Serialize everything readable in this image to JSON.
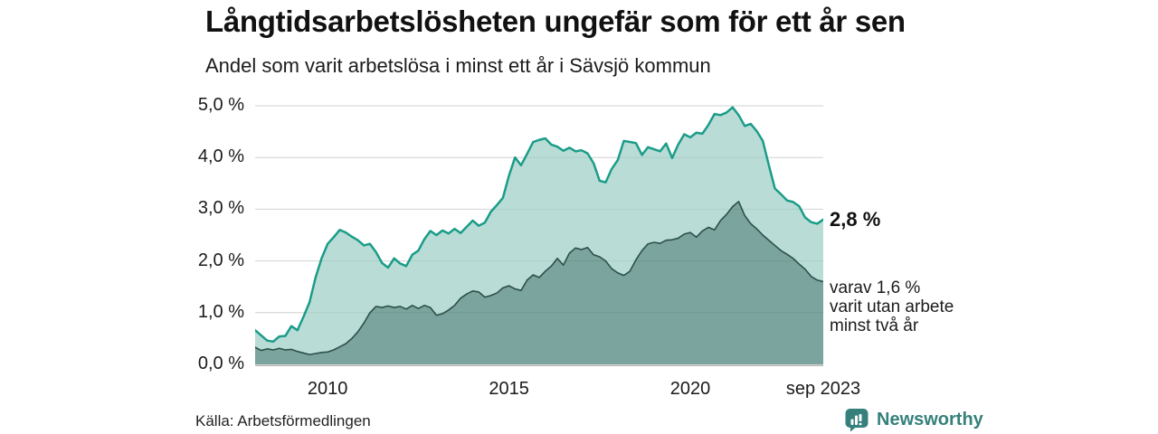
{
  "header": {
    "title": "Långtidsarbetslösheten ungefär som för ett år sen",
    "subtitle": "Andel som varit arbetslösa i minst ett år i Sävsjö kommun"
  },
  "chart_data": {
    "type": "area",
    "title": "Långtidsarbetslösheten ungefär som för ett år sen",
    "subtitle": "Andel som varit arbetslösa i minst ett år i Sävsjö kommun",
    "x_start": 2008.0,
    "x_end": 2023.6667,
    "step_months": 2,
    "ylim": [
      0,
      5
    ],
    "grid": true,
    "y_ticks": [
      {
        "v": 0,
        "label": "0,0 %"
      },
      {
        "v": 1,
        "label": "1,0 %"
      },
      {
        "v": 2,
        "label": "2,0 %"
      },
      {
        "v": 3,
        "label": "3,0 %"
      },
      {
        "v": 4,
        "label": "4,0 %"
      },
      {
        "v": 5,
        "label": "5,0 %"
      }
    ],
    "x_ticks": [
      {
        "t": 2010,
        "label": "2010"
      },
      {
        "t": 2015,
        "label": "2015"
      },
      {
        "t": 2020,
        "label": "2020"
      },
      {
        "t": 2023.6667,
        "label": "sep 2023"
      }
    ],
    "series": [
      {
        "name": "minst ett år",
        "stroke": "#1b9c89",
        "fill": "#b9ddd6",
        "stroke_width": 2.5,
        "end_value": 2.8,
        "values": [
          0.66,
          0.56,
          0.46,
          0.44,
          0.54,
          0.55,
          0.74,
          0.66,
          0.92,
          1.2,
          1.68,
          2.05,
          2.33,
          2.46,
          2.6,
          2.55,
          2.47,
          2.4,
          2.3,
          2.33,
          2.17,
          1.96,
          1.87,
          2.05,
          1.95,
          1.9,
          2.12,
          2.2,
          2.42,
          2.58,
          2.5,
          2.59,
          2.53,
          2.62,
          2.54,
          2.66,
          2.78,
          2.68,
          2.74,
          2.95,
          3.08,
          3.22,
          3.65,
          4.0,
          3.85,
          4.07,
          4.3,
          4.34,
          4.37,
          4.25,
          4.21,
          4.13,
          4.19,
          4.12,
          4.14,
          4.08,
          3.89,
          3.55,
          3.52,
          3.78,
          3.95,
          4.32,
          4.3,
          4.28,
          4.05,
          4.2,
          4.16,
          4.12,
          4.27,
          3.99,
          4.25,
          4.45,
          4.39,
          4.48,
          4.46,
          4.63,
          4.84,
          4.82,
          4.87,
          4.97,
          4.82,
          4.61,
          4.65,
          4.51,
          4.32,
          3.85,
          3.4,
          3.29,
          3.17,
          3.14,
          3.06,
          2.84,
          2.75,
          2.72,
          2.8
        ]
      },
      {
        "name": "minst två år",
        "stroke": "#2d4f49",
        "fill": "#7aa49d",
        "stroke_width": 1.6,
        "end_value": 1.6,
        "values": [
          0.33,
          0.27,
          0.3,
          0.28,
          0.31,
          0.28,
          0.29,
          0.25,
          0.22,
          0.19,
          0.21,
          0.23,
          0.24,
          0.28,
          0.34,
          0.4,
          0.5,
          0.63,
          0.8,
          1.0,
          1.12,
          1.1,
          1.13,
          1.1,
          1.12,
          1.07,
          1.14,
          1.08,
          1.14,
          1.1,
          0.95,
          0.98,
          1.05,
          1.14,
          1.28,
          1.36,
          1.42,
          1.4,
          1.3,
          1.33,
          1.38,
          1.48,
          1.52,
          1.46,
          1.43,
          1.63,
          1.73,
          1.68,
          1.8,
          1.9,
          2.05,
          1.92,
          2.15,
          2.25,
          2.22,
          2.26,
          2.12,
          2.08,
          2.0,
          1.85,
          1.77,
          1.72,
          1.8,
          2.02,
          2.2,
          2.33,
          2.36,
          2.34,
          2.4,
          2.41,
          2.44,
          2.52,
          2.55,
          2.46,
          2.58,
          2.65,
          2.6,
          2.78,
          2.9,
          3.05,
          3.15,
          2.88,
          2.72,
          2.62,
          2.5,
          2.4,
          2.3,
          2.2,
          2.13,
          2.05,
          1.94,
          1.84,
          1.7,
          1.63,
          1.6
        ]
      }
    ],
    "annotations": {
      "end_label": "2,8 %",
      "sub_lines": [
        "varav 1,6 %",
        "varit utan arbete",
        "minst två år"
      ]
    },
    "legend_position": "none"
  },
  "colors": {
    "grid": "#e2e2e2",
    "grid_overlay": "rgba(0,0,0,0.07)",
    "baseline": "#b3b3b3",
    "brand_teal": "#35807b"
  },
  "footer": {
    "source": "Källa: Arbetsförmedlingen",
    "brand": "Newsworthy"
  }
}
